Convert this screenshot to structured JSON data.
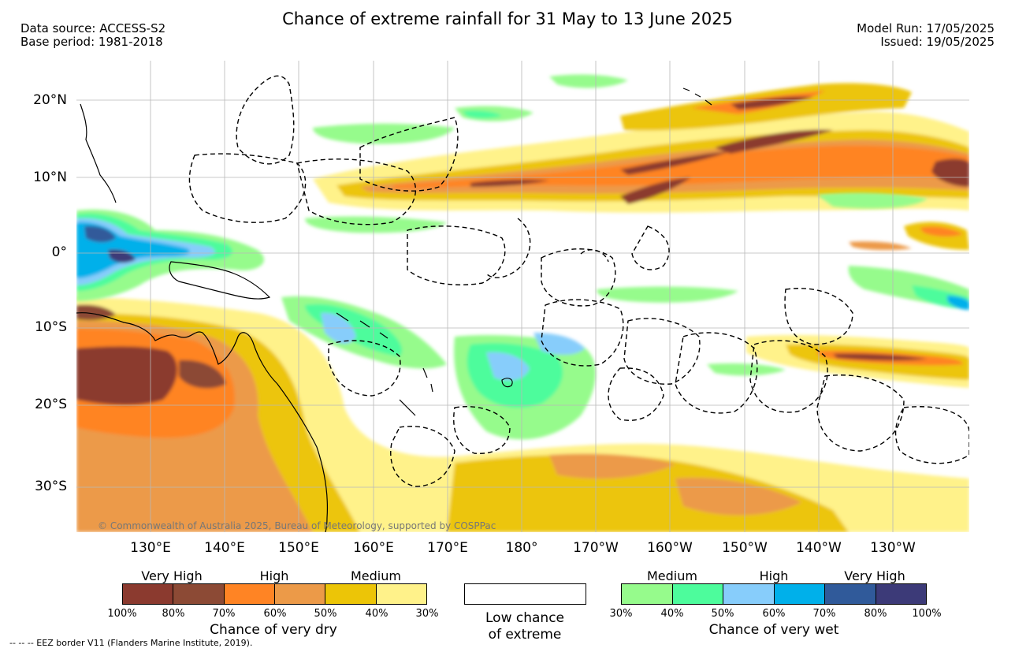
{
  "header": {
    "title": "Chance of extreme rainfall for 31 May to 13 June 2025",
    "data_source": "Data source: ACCESS-S2",
    "base_period": "Base period: 1981-2018",
    "model_run": "Model Run: 17/05/2025",
    "issued": "Issued: 19/05/2025"
  },
  "map": {
    "lat_labels": [
      "20°N",
      "10°N",
      "0°",
      "10°S",
      "20°S",
      "30°S"
    ],
    "lon_labels": [
      "130°E",
      "140°E",
      "150°E",
      "160°E",
      "170°E",
      "180°",
      "170°W",
      "160°W",
      "150°W",
      "140°W",
      "130°W"
    ],
    "copyright": "© Commonwealth of Australia 2025, Bureau of Meteorology, supported by COSPPac"
  },
  "legend": {
    "dry": {
      "categories": [
        "Very High",
        "High",
        "Medium"
      ],
      "colors": [
        "#8b3a2f",
        "#8c4a35",
        "#ff8424",
        "#ec9a48",
        "#ecc507",
        "#fff28a"
      ],
      "ticks": [
        "100%",
        "80%",
        "70%",
        "60%",
        "50%",
        "40%",
        "30%"
      ],
      "caption": "Chance of very dry"
    },
    "low": {
      "color": "#ffffff",
      "caption_line1": "Low chance",
      "caption_line2": "of extreme"
    },
    "wet": {
      "categories": [
        "Medium",
        "High",
        "Very High"
      ],
      "colors": [
        "#96fb8c",
        "#4dfc9c",
        "#87cdfb",
        "#00b0ea",
        "#305a9a",
        "#3c3a78"
      ],
      "ticks": [
        "30%",
        "40%",
        "50%",
        "60%",
        "70%",
        "80%",
        "100%"
      ],
      "caption": "Chance of very wet"
    }
  },
  "footer": {
    "eez_note": "-- -- -- EEZ border V11 (Flanders Marine Institute, 2019)."
  }
}
